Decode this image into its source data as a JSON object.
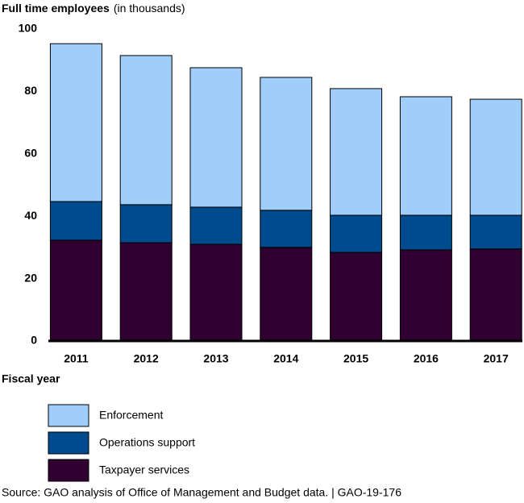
{
  "chart_data": {
    "type": "stacked_bar",
    "title": "Full time employees",
    "subtitle": "(in thousands)",
    "x_label": "Fiscal year",
    "source": "Source: GAO analysis of Office of Management and Budget data.  |  GAO-19-176",
    "categories": [
      "2011",
      "2012",
      "2013",
      "2014",
      "2015",
      "2016",
      "2017"
    ],
    "series": [
      {
        "name": "Enforcement",
        "color": "#a0cdfa",
        "values": [
          50.6,
          47.8,
          44.7,
          42.6,
          40.6,
          38.0,
          37.2
        ]
      },
      {
        "name": "Operations support",
        "color": "#004b8d",
        "values": [
          12.4,
          12.2,
          11.9,
          11.9,
          11.9,
          11.1,
          10.8
        ]
      },
      {
        "name": "Taxpayer services",
        "color": "#300030",
        "values": [
          32.3,
          31.5,
          31.0,
          30.0,
          28.4,
          29.2,
          29.5
        ]
      }
    ],
    "ylim": [
      0,
      100
    ],
    "yticks": [
      0,
      20,
      40,
      60,
      80,
      100
    ],
    "grid": false
  }
}
